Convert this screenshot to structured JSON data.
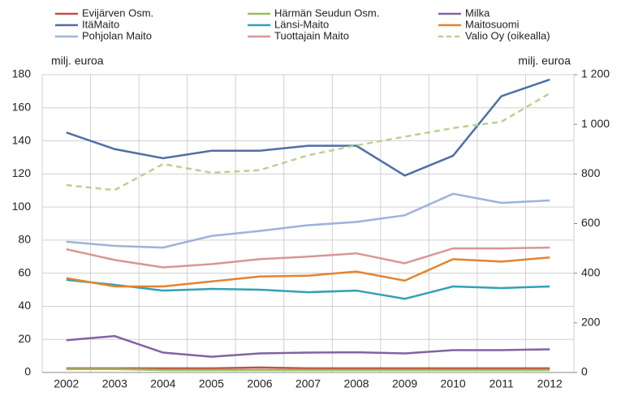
{
  "chart_data": {
    "type": "line",
    "y_label": "milj. euroa",
    "y2_label": "milj. euroa",
    "categories": [
      "2002",
      "2003",
      "2004",
      "2005",
      "2006",
      "2007",
      "2008",
      "2009",
      "2010",
      "2011",
      "2012"
    ],
    "series": [
      {
        "name": "Evijärven Osm.",
        "color": "#c0504d",
        "values": [
          2.5,
          2.5,
          2.5,
          2.5,
          3,
          2.5,
          2.5,
          2.5,
          2.5,
          2.5,
          2.5
        ]
      },
      {
        "name": "Härmän Seudun Osm.",
        "color": "#9bbb59",
        "values": [
          2,
          2,
          1.5,
          1.5,
          1.5,
          1.5,
          1.5,
          1.5,
          1.5,
          1.5,
          1.5
        ]
      },
      {
        "name": "Milka",
        "color": "#8064a2",
        "values": [
          19.5,
          22,
          12,
          9.5,
          11.5,
          12,
          12.2,
          11.5,
          13.5,
          13.5,
          14
        ]
      },
      {
        "name": "ItäMaito",
        "color": "#4f6fa6",
        "values": [
          145,
          135,
          129.5,
          134,
          134,
          137,
          137,
          119,
          131,
          167,
          177
        ]
      },
      {
        "name": "Länsi-Maito",
        "color": "#31a1b6",
        "values": [
          56,
          53,
          49.5,
          50.5,
          50,
          48.5,
          49.5,
          44.5,
          52,
          51,
          52
        ]
      },
      {
        "name": "Maitosuomi",
        "color": "#e5832f",
        "values": [
          57,
          52,
          52,
          55,
          58,
          58.5,
          61,
          55.5,
          68.5,
          67,
          69.5
        ]
      },
      {
        "name": "Pohjolan Maito",
        "color": "#9db3da",
        "values": [
          79,
          76.5,
          75.5,
          82.5,
          85.5,
          89,
          91,
          95,
          108,
          102.5,
          104
        ]
      },
      {
        "name": "Tuottajain Maito",
        "color": "#d99694",
        "values": [
          74.5,
          68,
          63.5,
          65.5,
          68.5,
          70,
          72,
          66,
          75,
          75,
          75.5
        ]
      },
      {
        "name": "Valio Oy (oikealla)",
        "color": "#b7d38f",
        "axis": "y2",
        "dashed": true,
        "values": [
          755,
          735,
          840,
          805,
          815,
          875,
          915,
          950,
          985,
          1010,
          1125
        ]
      }
    ],
    "ylim": [
      0,
      180
    ],
    "yticks": [
      0,
      20,
      40,
      60,
      80,
      100,
      120,
      140,
      160,
      180
    ],
    "y2lim": [
      0,
      1200
    ],
    "y2ticks": [
      0,
      200,
      400,
      600,
      800,
      {
        "value": 1000,
        "label": "1 000"
      },
      {
        "value": 1200,
        "label": "1 200"
      }
    ],
    "grid": true
  }
}
